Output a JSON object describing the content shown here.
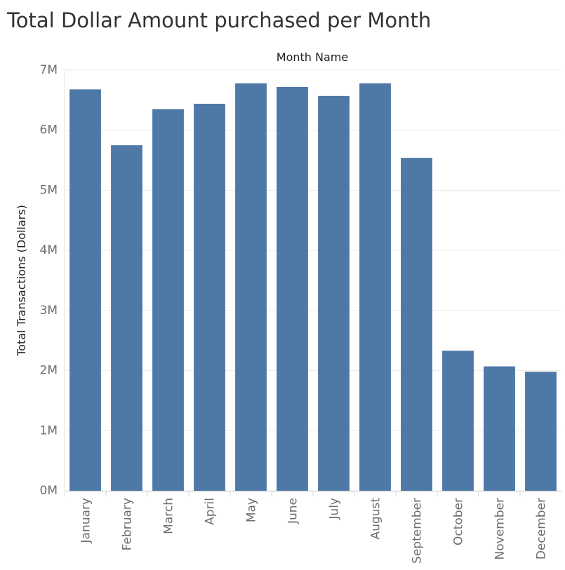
{
  "chart_data": {
    "type": "bar",
    "title": "Total Dollar Amount purchased per Month",
    "header": "Month Name",
    "ylabel": "Total Transactions (Dollars)",
    "categories": [
      "January",
      "February",
      "March",
      "April",
      "May",
      "June",
      "July",
      "August",
      "September",
      "October",
      "November",
      "December"
    ],
    "values": [
      6680000,
      5750000,
      6350000,
      6440000,
      6780000,
      6720000,
      6570000,
      6780000,
      5540000,
      2330000,
      2070000,
      1980000
    ],
    "ylim": [
      0,
      7000000
    ],
    "yticks": [
      {
        "value": 0,
        "label": "0M"
      },
      {
        "value": 1000000,
        "label": "1M"
      },
      {
        "value": 2000000,
        "label": "2M"
      },
      {
        "value": 3000000,
        "label": "3M"
      },
      {
        "value": 4000000,
        "label": "4M"
      },
      {
        "value": 5000000,
        "label": "5M"
      },
      {
        "value": 6000000,
        "label": "6M"
      },
      {
        "value": 7000000,
        "label": "7M"
      }
    ],
    "bar_color": "#4e79a7",
    "grid": true
  }
}
